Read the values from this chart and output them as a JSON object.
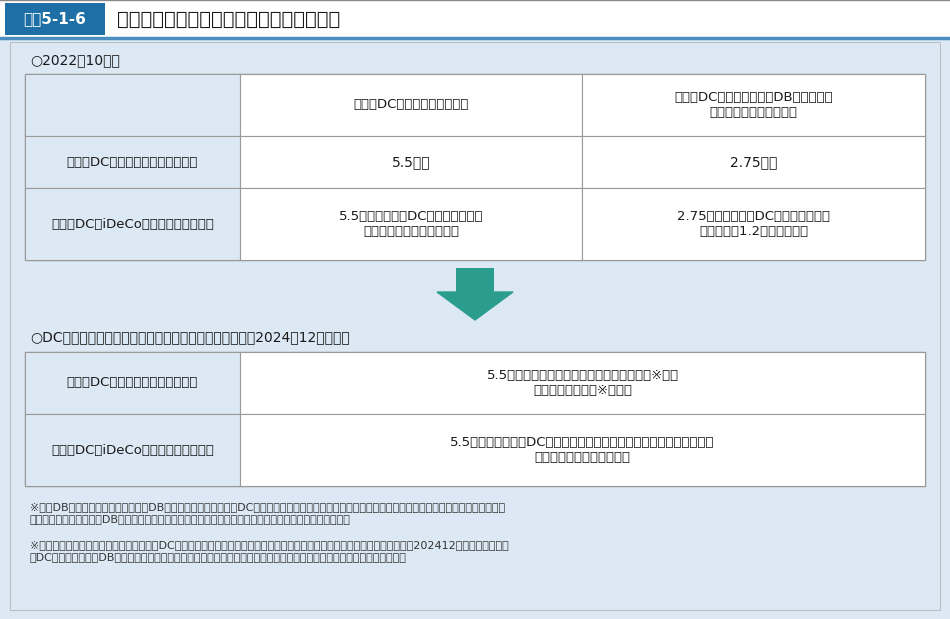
{
  "title_box_color": "#1e6fa5",
  "title_label_color": "#ffffff",
  "title_label": "図表5-1-6",
  "title_text": "企業型・個人型確定拠出年金の拠出限度額",
  "background_color": "#dce9f5",
  "panel_bg": "#dce9f5",
  "white": "#ffffff",
  "left_col_bg": "#dce9f5",
  "arrow_color": "#2a9d8f",
  "section1_label": "○2022年10月〜",
  "section2_label": "○DC拠出限度額に確定給付型の事業主掛金額を反映後（2024年12月以降）",
  "table1_col_headers": [
    "企業型DCのみに加入する場合",
    "企業型DCと確定給付型（DB、厚生年金\n基金等）に加入する場合"
  ],
  "table1_row_headers": [
    "企業型DCの事業主掛金額（月額）",
    "個人型DC（iDeCo）の掛金額（月額）"
  ],
  "table1_data": [
    [
      "5.5万円",
      "2.75万円"
    ],
    [
      "5.5万円－企業型DCの事業主掛金額\n（ただし、２万円を上限）",
      "2.75万円－企業型DCの事業主掛金額\n（ただし、1.2万円を上限）"
    ]
  ],
  "table2_row_headers": [
    "企業型DCの事業主掛金額（月額）",
    "個人型DC（iDeCo）の掛金額（月額）"
  ],
  "table2_data": [
    [
      "5.5万円－確定給付型の事業主掛金相当額（※１）\n（経過措置あり（※２））"
    ],
    [
      "5.5万円－（企業型DCの事業主掛金額＋確定給付型の事業主掛金額）\n（ただし、２万円を上限）"
    ]
  ],
  "footnote1_label": "※１",
  "footnote1_text": "DB等の他制度掛金相当額は，DB等の給付水準から企業型DCの事業主掛金に相当する額として算定したもので，複数の他制度に加入している場合\nは合計額。他制度には，DBのほか，厚生年金基金・私立学校教職員共済制度・石炭鉱業年金基金を含む。",
  "footnote2_label": "※２",
  "footnote2_text": "経過措置として，施行の際に企業型DCを実施している事業主は，旧制度（現行制度）を適用することとした。ただし，202412月１日以後に企業\n型DCの事業主掛金やDBの給付設計の見直しを行う規約変更等を行った場合には，経過措置の適用は終了することとする。",
  "text_color": "#1a1a1a",
  "footnote_color": "#333333",
  "border_color": "#999999",
  "title_border_color": "#1e6fa5"
}
